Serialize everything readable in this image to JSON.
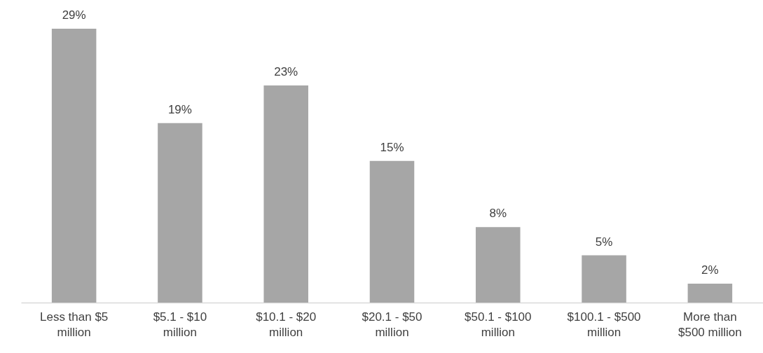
{
  "chart_data": {
    "type": "bar",
    "categories": [
      "Less than $5 million",
      "$5.1 - $10 million",
      "$10.1 - $20 million",
      "$20.1 - $50 million",
      "$50.1 - $100 million",
      "$100.1 - $500 million",
      "More than $500 million"
    ],
    "values": [
      29,
      19,
      23,
      15,
      8,
      5,
      2
    ],
    "value_labels": [
      "29%",
      "19%",
      "23%",
      "15%",
      "8%",
      "5%",
      "2%"
    ],
    "color": "#a6a6a6",
    "grid": false
  }
}
